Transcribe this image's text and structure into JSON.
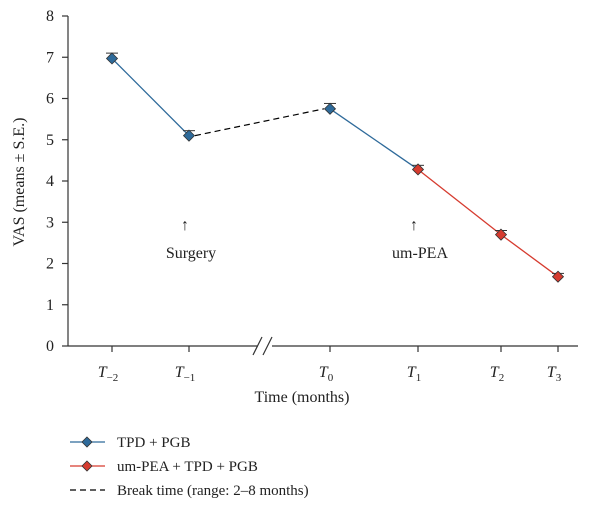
{
  "chart_data": {
    "type": "line",
    "xlabel": "Time (months)",
    "ylabel": "VAS (means ± S.E.)",
    "ylim": [
      0,
      8
    ],
    "yticks": [
      0,
      1,
      2,
      3,
      4,
      5,
      6,
      7,
      8
    ],
    "grid": false,
    "legend_position": "bottom-left",
    "x_categories": [
      {
        "base": "T",
        "sub": "−2"
      },
      {
        "base": "T",
        "sub": "−1"
      },
      {
        "base": "T",
        "sub": "0"
      },
      {
        "base": "T",
        "sub": "1"
      },
      {
        "base": "T",
        "sub": "2"
      },
      {
        "base": "T",
        "sub": "3"
      }
    ],
    "axis_break_after_index": 1,
    "series": [
      {
        "name": "TPD + PGB",
        "color": "#2e6a9a",
        "marker": "diamond",
        "line_style": "solid",
        "points": [
          {
            "x_index": 0,
            "y": 6.97,
            "se": 0.13
          },
          {
            "x_index": 1,
            "y": 5.1,
            "se": 0.12
          }
        ]
      },
      {
        "name": "TPD + PGB",
        "color": "#2e6a9a",
        "marker": "diamond",
        "line_style": "solid",
        "points": [
          {
            "x_index": 2,
            "y": 5.75,
            "se": 0.13
          },
          {
            "x_index": 3,
            "y": 4.28,
            "se": 0.1
          }
        ]
      },
      {
        "name": "um-PEA + TPD + PGB",
        "color": "#d63b2f",
        "marker": "diamond",
        "line_style": "solid",
        "points": [
          {
            "x_index": 3,
            "y": 4.28,
            "se": 0.1
          },
          {
            "x_index": 4,
            "y": 2.7,
            "se": 0.1
          },
          {
            "x_index": 5,
            "y": 1.68,
            "se": 0.08
          }
        ]
      }
    ],
    "break_line": {
      "name": "Break time (range: 2–8 months)",
      "color": "#000000",
      "from": {
        "x_index": 1,
        "y": 5.1
      },
      "to": {
        "x_index": 2,
        "y": 5.75
      }
    },
    "annotations": [
      {
        "text": "Surgery",
        "x_index": 1,
        "arrow": "↑"
      },
      {
        "text": "um-PEA",
        "x_index": 3,
        "arrow": "↑"
      }
    ],
    "legend": [
      {
        "label": "TPD + PGB",
        "color": "#2e6a9a",
        "marker": "diamond",
        "line_style": "solid"
      },
      {
        "label": "um-PEA + TPD + PGB",
        "color": "#d63b2f",
        "marker": "diamond",
        "line_style": "solid"
      },
      {
        "label": "Break time (range: 2–8 months)",
        "color": "#000000",
        "marker": "none",
        "line_style": "dashed"
      }
    ]
  }
}
